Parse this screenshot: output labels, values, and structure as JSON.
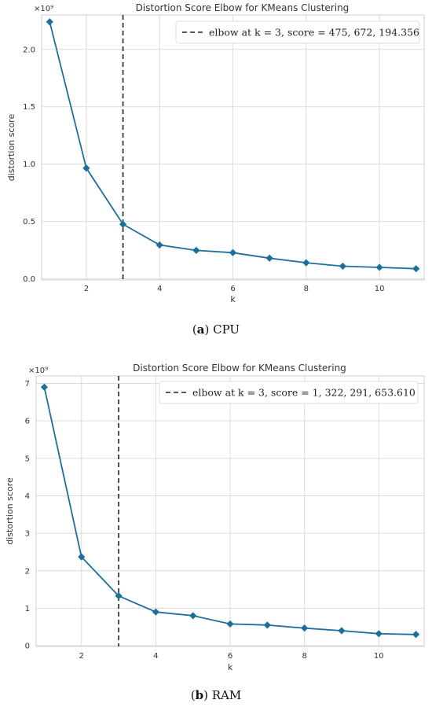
{
  "chart_data": [
    {
      "type": "line",
      "title": "Distortion Score Elbow for KMeans Clustering",
      "xlabel": "k",
      "ylabel": "distortion score",
      "y_multiplier": "×10⁹",
      "x": [
        1,
        2,
        3,
        4,
        5,
        6,
        7,
        8,
        9,
        10,
        11
      ],
      "series": [
        {
          "values": [
            2.24,
            0.965,
            0.476,
            0.295,
            0.248,
            0.228,
            0.18,
            0.14,
            0.11,
            0.1,
            0.088
          ]
        }
      ],
      "xlim": [
        0.78,
        11.22
      ],
      "ylim": [
        -0.01,
        2.3
      ],
      "xticks": [
        2,
        4,
        6,
        8,
        10
      ],
      "yticks": [
        0.0,
        0.5,
        1.0,
        1.5,
        2.0
      ],
      "ytick_labels": [
        "0.0",
        "0.5",
        "1.0",
        "1.5",
        "2.0"
      ],
      "elbow_k": 3,
      "legend": {
        "text": "elbow at k = 3, score = 475, 672, 194.356",
        "placement": "top-right"
      },
      "caption_label": "(a)",
      "caption_text": "CPU",
      "grid": true,
      "color": "#1b6f9b"
    },
    {
      "type": "line",
      "title": "Distortion Score Elbow for KMeans Clustering",
      "xlabel": "k",
      "ylabel": "distortion score",
      "y_multiplier": "×10⁹",
      "x": [
        1,
        2,
        3,
        4,
        5,
        6,
        7,
        8,
        9,
        10,
        11
      ],
      "series": [
        {
          "values": [
            6.9,
            2.37,
            1.33,
            0.9,
            0.8,
            0.58,
            0.55,
            0.47,
            0.4,
            0.32,
            0.3
          ]
        }
      ],
      "xlim": [
        0.78,
        11.22
      ],
      "ylim": [
        -0.02,
        7.2
      ],
      "xticks": [
        2,
        4,
        6,
        8,
        10
      ],
      "yticks": [
        0,
        1,
        2,
        3,
        4,
        5,
        6,
        7
      ],
      "ytick_labels": [
        "0",
        "1",
        "2",
        "3",
        "4",
        "5",
        "6",
        "7"
      ],
      "elbow_k": 3,
      "legend": {
        "text": "elbow at k = 3, score = 1, 322, 291, 653.610",
        "placement": "top-right"
      },
      "caption_label": "(b)",
      "caption_text": "RAM",
      "grid": true,
      "color": "#1b6f9b"
    }
  ]
}
